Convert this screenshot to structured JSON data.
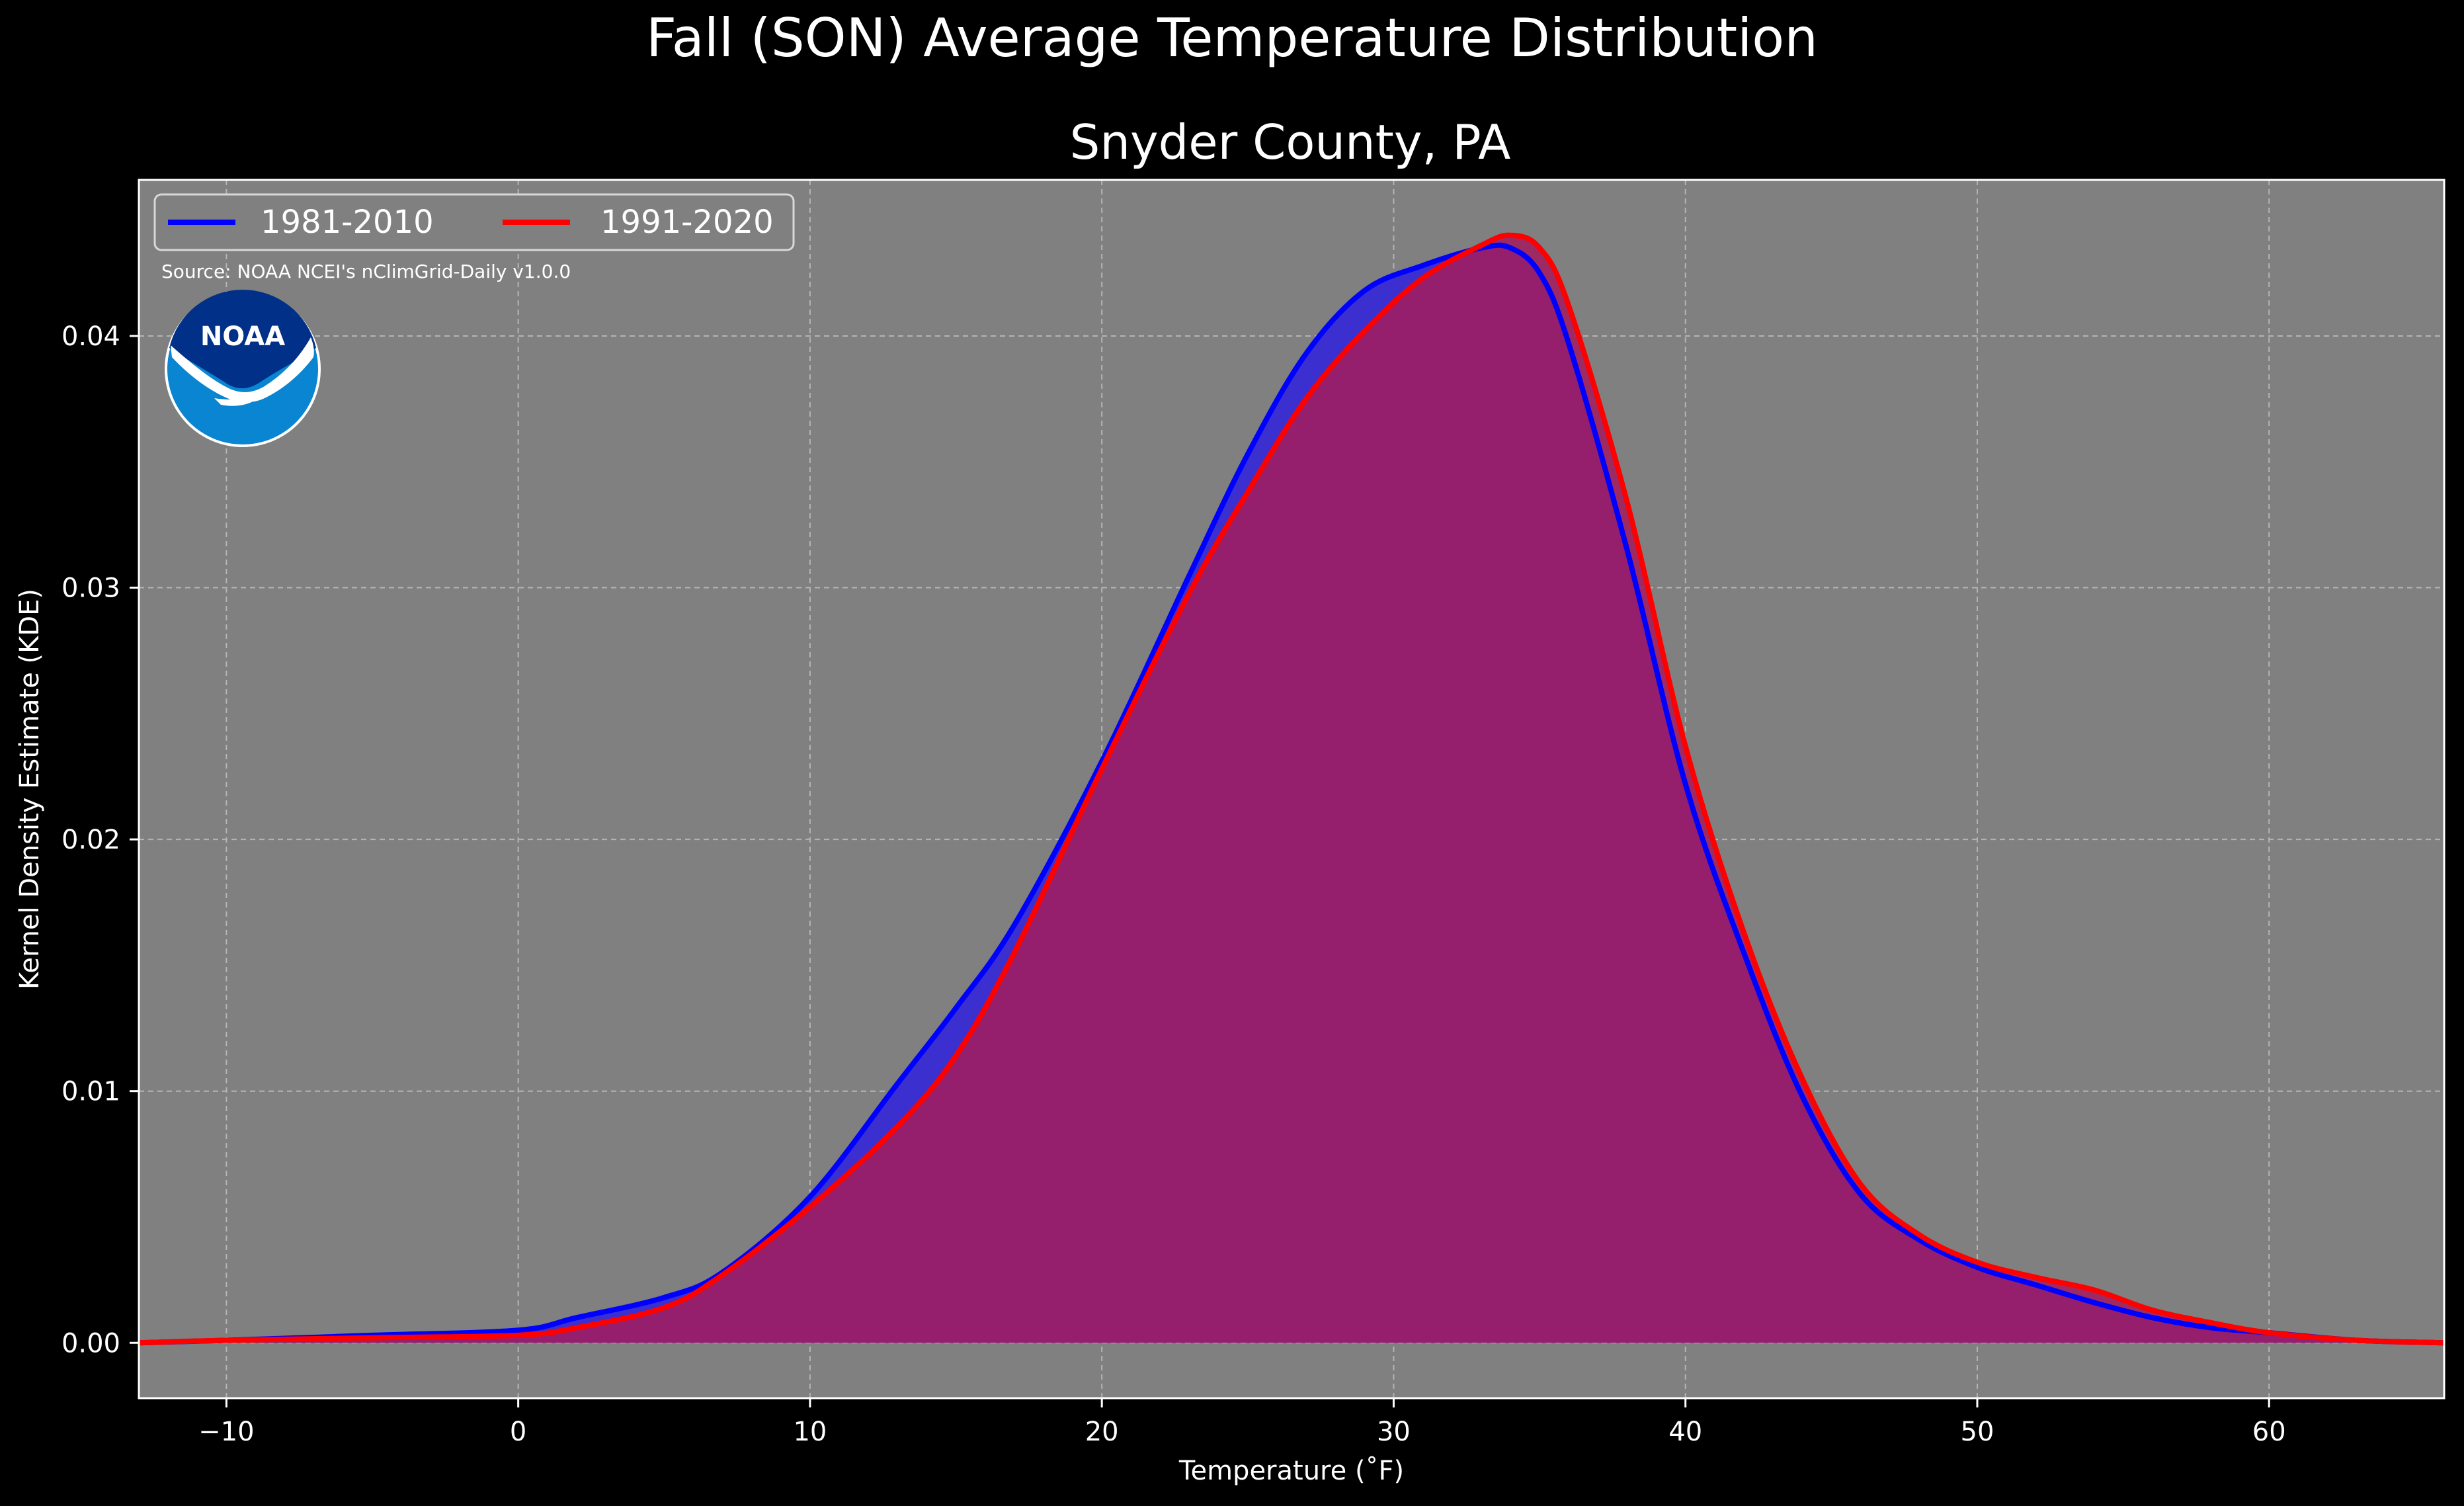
{
  "chart_data": {
    "type": "area",
    "title": "Fall (SON) Average Temperature Distribution",
    "subtitle": "Snyder County, PA",
    "xlabel": "Temperature (˚F)",
    "ylabel": "Kernel Density Estimate (KDE)",
    "xlim": [
      -13,
      66
    ],
    "ylim": [
      -0.0022,
      0.0462
    ],
    "xticks": [
      -10,
      0,
      10,
      20,
      30,
      40,
      50,
      60
    ],
    "xtick_labels": [
      "−10",
      "0",
      "10",
      "20",
      "30",
      "40",
      "50",
      "60"
    ],
    "yticks": [
      0.0,
      0.01,
      0.02,
      0.03,
      0.04
    ],
    "ytick_labels": [
      "0.00",
      "0.01",
      "0.02",
      "0.03",
      "0.04"
    ],
    "grid": true,
    "legend_position": "top-left",
    "source_note": "Source: NOAA NCEI's nClimGrid-Daily v1.0.0",
    "logo_text": "NOAA",
    "colors": {
      "background": "#000000",
      "plot_background": "#808080",
      "series_1": "#0000ff",
      "series_2": "#ff0000",
      "fill_1": "#3b2fd0",
      "fill_2": "#a21e5e"
    },
    "series": [
      {
        "name": "1981-2010",
        "color": "#0000ff",
        "x": [
          -13,
          -10,
          -5,
          0,
          2,
          5,
          7,
          10,
          13,
          15,
          17,
          20,
          23,
          25,
          27,
          29,
          31,
          33,
          34,
          35,
          36,
          38,
          40,
          42,
          44,
          46,
          48,
          50,
          52,
          54,
          56,
          58,
          60,
          63,
          66
        ],
        "y": [
          0,
          0.0001,
          0.0003,
          0.0005,
          0.001,
          0.0018,
          0.0028,
          0.0058,
          0.0103,
          0.0133,
          0.0166,
          0.0231,
          0.0305,
          0.0353,
          0.0393,
          0.0418,
          0.0428,
          0.0435,
          0.0435,
          0.0425,
          0.0397,
          0.0315,
          0.0222,
          0.0155,
          0.0098,
          0.0059,
          0.0041,
          0.003,
          0.0023,
          0.0016,
          0.001,
          0.0006,
          0.0004,
          0.0001,
          0
        ]
      },
      {
        "name": "1991-2020",
        "color": "#ff0000",
        "x": [
          -13,
          -10,
          -5,
          0,
          2,
          5,
          7,
          10,
          13,
          15,
          17,
          20,
          23,
          25,
          27,
          29,
          31,
          33,
          34,
          35,
          36,
          38,
          40,
          42,
          44,
          46,
          48,
          50,
          52,
          54,
          56,
          58,
          60,
          63,
          66
        ],
        "y": [
          0,
          0.0001,
          0.0002,
          0.0003,
          0.0006,
          0.0014,
          0.0027,
          0.0054,
          0.0086,
          0.0114,
          0.0155,
          0.0228,
          0.0298,
          0.0338,
          0.0375,
          0.0402,
          0.0423,
          0.0436,
          0.044,
          0.0435,
          0.0412,
          0.0334,
          0.0237,
          0.0163,
          0.0105,
          0.0063,
          0.0043,
          0.0032,
          0.0026,
          0.0021,
          0.0013,
          0.0008,
          0.0004,
          0.0001,
          0
        ]
      }
    ]
  }
}
